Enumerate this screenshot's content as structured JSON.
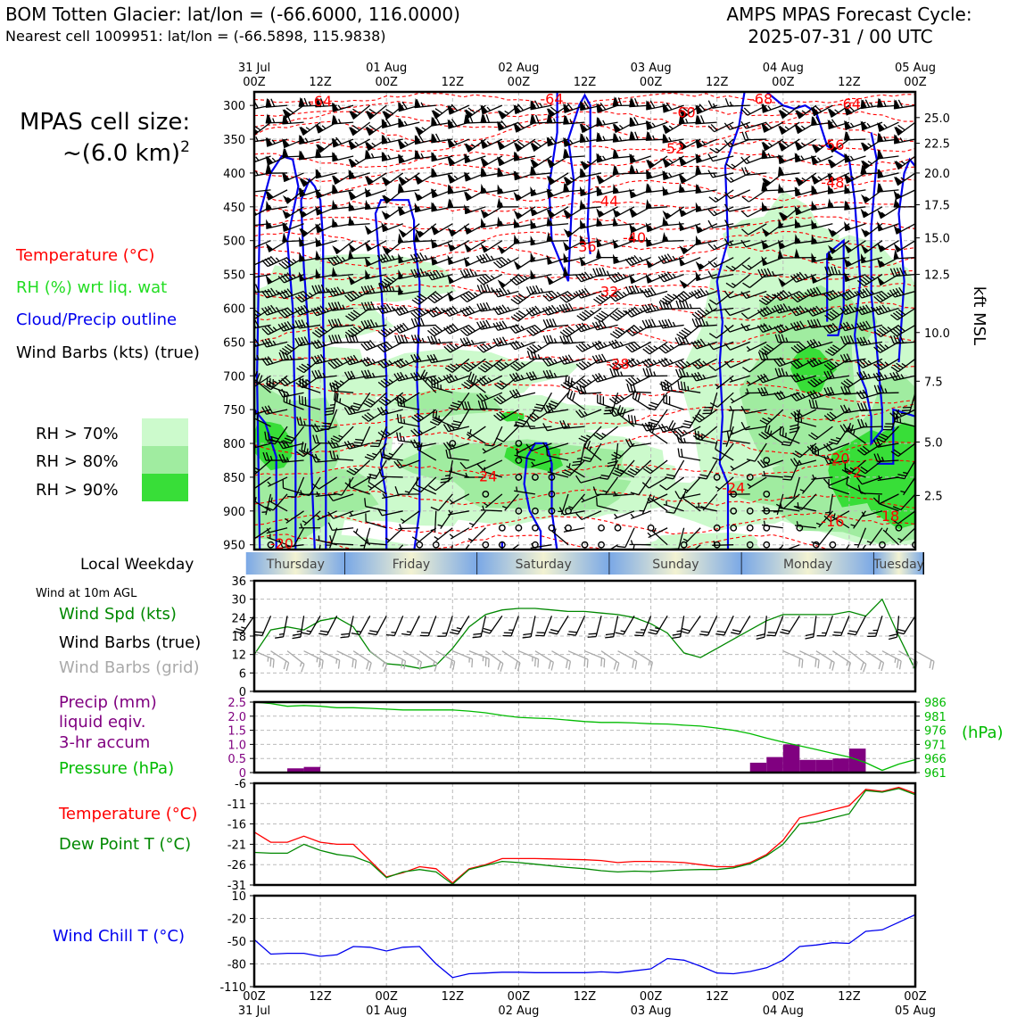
{
  "header": {
    "title_left": "BOM Totten Glacier: lat/lon = (-66.6000, 116.0000)",
    "subtitle_left": "Nearest cell 1009951: lat/lon = (-66.5898, 115.9838)",
    "title_right_1": "AMPS MPAS Forecast Cycle:",
    "title_right_2": "2025-07-31 / 00 UTC"
  },
  "cell_size": {
    "line1": "MPAS cell size:",
    "line2": "~(6.0 km)",
    "sup": "2"
  },
  "legend_upper": {
    "temperature": "Temperature (°C)",
    "rh": "RH (%) wrt liq. wat",
    "cloud": "Cloud/Precip outline",
    "wind": "Wind Barbs (kts) (true)",
    "rh70": "RH > 70%",
    "rh80": "RH > 80%",
    "rh90": "RH > 90%"
  },
  "colors": {
    "rh70": "#ccfacc",
    "rh80": "#a0eca0",
    "rh90": "#38de38",
    "temperature": "#ff0000",
    "cloud": "#0000ee",
    "wind_speed": "#008800",
    "grid_barb": "#aaaaaa",
    "precip": "#800080",
    "pressure": "#00bb00",
    "dewpoint": "#008800",
    "windchill": "#0000ee",
    "weekday_blue": "#7aa8e6",
    "weekday_cream": "#f2f2d2"
  },
  "time_axis": {
    "top_labels": [
      {
        "t": 0,
        "l1": "31 Jul",
        "l2": "00Z"
      },
      {
        "t": 12,
        "l1": "",
        "l2": "12Z"
      },
      {
        "t": 24,
        "l1": "01 Aug",
        "l2": "00Z"
      },
      {
        "t": 36,
        "l1": "",
        "l2": "12Z"
      },
      {
        "t": 48,
        "l1": "02 Aug",
        "l2": "00Z"
      },
      {
        "t": 60,
        "l1": "",
        "l2": "12Z"
      },
      {
        "t": 72,
        "l1": "03 Aug",
        "l2": "00Z"
      },
      {
        "t": 84,
        "l1": "",
        "l2": "12Z"
      },
      {
        "t": 96,
        "l1": "04 Aug",
        "l2": "00Z"
      },
      {
        "t": 108,
        "l1": "",
        "l2": "12Z"
      },
      {
        "t": 120,
        "l1": "05 Aug",
        "l2": "00Z"
      }
    ]
  },
  "weekday": {
    "label": "Local Weekday",
    "days": [
      {
        "name": "Thursday",
        "start": -1.5,
        "end": 16.5
      },
      {
        "name": "Friday",
        "start": 16.5,
        "end": 40.5
      },
      {
        "name": "Saturday",
        "start": 40.5,
        "end": 64.5
      },
      {
        "name": "Sunday",
        "start": 64.5,
        "end": 88.5
      },
      {
        "name": "Monday",
        "start": 88.5,
        "end": 112.5
      },
      {
        "name": "Tuesday",
        "start": 112.5,
        "end": 121.5
      }
    ]
  },
  "panel_labels": {
    "wind10m": "Wind at 10m AGL",
    "wind_spd": "Wind Spd (kts)",
    "wind_barbs_true": "Wind Barbs (true)",
    "wind_barbs_grid": "Wind Barbs (grid)",
    "precip1": "Precip (mm)",
    "precip2": "liquid eqiv.",
    "precip3": "3-hr accum",
    "pressure": "Pressure (hPa)",
    "hpa_unit": "(hPa)",
    "temp": "Temperature (°C)",
    "dewpt": "Dew Point T (°C)",
    "windchill": "Wind Chill T (°C)",
    "kft": "kft MSL"
  },
  "chart_data": [
    {
      "type": "heatmap",
      "name": "vertical cross-section",
      "y_axis": {
        "label": "",
        "ticks": [
          300,
          350,
          400,
          450,
          500,
          550,
          600,
          650,
          700,
          750,
          800,
          850,
          900,
          950
        ],
        "range": [
          957,
          280
        ],
        "units": "hPa"
      },
      "y2_axis": {
        "label": "kft MSL",
        "ticks": [
          {
            "label": "25.0",
            "p": 318
          },
          {
            "label": "22.5",
            "p": 356
          },
          {
            "label": "20.0",
            "p": 400
          },
          {
            "label": "17.5",
            "p": 447
          },
          {
            "label": "15.0",
            "p": 496
          },
          {
            "label": "12.5",
            "p": 550
          },
          {
            "label": "10.0",
            "p": 636
          },
          {
            "label": "7.5",
            "p": 708
          },
          {
            "label": "5.0",
            "p": 798
          },
          {
            "label": "2.5",
            "p": 877
          }
        ]
      },
      "x_range": [
        0,
        120
      ],
      "temperature_labels": [
        {
          "t": 12,
          "p": 293,
          "v": "-64"
        },
        {
          "t": 54,
          "p": 290,
          "v": "-64"
        },
        {
          "t": 92,
          "p": 290,
          "v": "-68"
        },
        {
          "t": 108,
          "p": 297,
          "v": "-64"
        },
        {
          "t": 78,
          "p": 310,
          "v": "-60"
        },
        {
          "t": 76,
          "p": 363,
          "v": "-52"
        },
        {
          "t": 105,
          "p": 358,
          "v": "-56"
        },
        {
          "t": 105,
          "p": 413,
          "v": "-48"
        },
        {
          "t": 64,
          "p": 441,
          "v": "-44"
        },
        {
          "t": 69,
          "p": 495,
          "v": "-40"
        },
        {
          "t": 60,
          "p": 508,
          "v": "-36"
        },
        {
          "t": 64,
          "p": 575,
          "v": "-32"
        },
        {
          "t": 66,
          "p": 682,
          "v": "-28"
        },
        {
          "t": 42,
          "p": 848,
          "v": "-24"
        },
        {
          "t": 87,
          "p": 865,
          "v": "-24"
        },
        {
          "t": 106,
          "p": 822,
          "v": "-20"
        },
        {
          "t": 5,
          "p": 948,
          "v": "-20"
        },
        {
          "t": 109,
          "p": 842,
          "v": "-2"
        },
        {
          "t": 105,
          "p": 915,
          "v": "-16"
        },
        {
          "t": 115,
          "p": 907,
          "v": "-18"
        }
      ]
    },
    {
      "type": "line",
      "name": "wind-10m",
      "ylim": [
        0,
        36
      ],
      "yticks": [
        0,
        6,
        12,
        18,
        24,
        30,
        36
      ],
      "series": [
        {
          "name": "Wind Spd (kts)",
          "x": [
            0,
            3,
            6,
            9,
            12,
            15,
            18,
            21,
            24,
            27,
            30,
            33,
            36,
            39,
            42,
            45,
            48,
            51,
            54,
            57,
            60,
            63,
            66,
            69,
            72,
            75,
            78,
            81,
            84,
            87,
            90,
            93,
            96,
            99,
            102,
            105,
            108,
            111,
            114,
            117,
            120
          ],
          "values": [
            12,
            20,
            21,
            20,
            23,
            24,
            21,
            13,
            9,
            8.5,
            7.5,
            8.5,
            14,
            21,
            25,
            26.5,
            27,
            27,
            26.5,
            26,
            26,
            25.5,
            25,
            24,
            22,
            19,
            12.5,
            11,
            14,
            17,
            20,
            23,
            25,
            25,
            25,
            25,
            26,
            24.5,
            30,
            18,
            7
          ]
        }
      ]
    },
    {
      "type": "bar",
      "name": "precip-pressure",
      "ylim": [
        0,
        2.5
      ],
      "yticks": [
        0,
        0.5,
        1.0,
        1.5,
        2.0,
        2.5
      ],
      "ytick_labels": [
        "0",
        "0.5",
        "1.0",
        "1.5",
        "2.0",
        "2.5"
      ],
      "y2lim": [
        961,
        986
      ],
      "y2ticks": [
        961,
        966,
        971,
        976,
        981,
        986
      ],
      "bars": [
        {
          "x0": 6,
          "x1": 9,
          "v": 0.15
        },
        {
          "x0": 9,
          "x1": 12,
          "v": 0.2
        },
        {
          "x0": 90,
          "x1": 93,
          "v": 0.35
        },
        {
          "x0": 93,
          "x1": 96,
          "v": 0.55
        },
        {
          "x0": 96,
          "x1": 99,
          "v": 1.0
        },
        {
          "x0": 99,
          "x1": 102,
          "v": 0.45
        },
        {
          "x0": 102,
          "x1": 105,
          "v": 0.45
        },
        {
          "x0": 105,
          "x1": 108,
          "v": 0.5
        },
        {
          "x0": 108,
          "x1": 111,
          "v": 0.85
        }
      ],
      "pressure": {
        "x": [
          0,
          3,
          6,
          9,
          12,
          15,
          18,
          21,
          24,
          27,
          30,
          33,
          36,
          39,
          42,
          45,
          48,
          51,
          54,
          57,
          60,
          63,
          66,
          69,
          72,
          75,
          78,
          81,
          84,
          87,
          90,
          93,
          96,
          99,
          102,
          105,
          108,
          111,
          114,
          117,
          120
        ],
        "values": [
          986,
          985.5,
          984.5,
          984.8,
          984.5,
          984,
          984,
          983.8,
          983.5,
          983.2,
          983.2,
          983.2,
          983.2,
          982.8,
          982.2,
          981.3,
          980.6,
          980.3,
          980.1,
          979.6,
          979.1,
          978.8,
          978.8,
          978.6,
          978.3,
          978.2,
          977.8,
          977.5,
          976.8,
          976,
          974.8,
          973.2,
          971.8,
          970.5,
          969.2,
          967.8,
          966.5,
          964.5,
          961.8,
          964,
          965.6
        ]
      }
    },
    {
      "type": "line",
      "name": "temperature-dewpoint",
      "ylim": [
        -31,
        -6
      ],
      "yticks": [
        -31,
        -26,
        -21,
        -16,
        -11,
        -6
      ],
      "series": [
        {
          "name": "Temperature (°C)",
          "x": [
            0,
            3,
            6,
            9,
            12,
            15,
            18,
            21,
            24,
            27,
            30,
            33,
            36,
            39,
            42,
            45,
            48,
            51,
            54,
            57,
            60,
            63,
            66,
            69,
            72,
            75,
            78,
            81,
            84,
            87,
            90,
            93,
            96,
            99,
            102,
            105,
            108,
            111,
            114,
            117,
            120
          ],
          "values": [
            -18,
            -20.5,
            -20.5,
            -19,
            -20.5,
            -21,
            -21,
            -25,
            -29,
            -28,
            -26.5,
            -27,
            -30.5,
            -27,
            -26,
            -24.5,
            -24.5,
            -24.5,
            -24.6,
            -24.7,
            -24.8,
            -25,
            -25.5,
            -25.2,
            -25.2,
            -25.3,
            -25.5,
            -26,
            -26.5,
            -26.5,
            -25.5,
            -23.5,
            -20,
            -14.5,
            -13.5,
            -12.5,
            -11.5,
            -7.5,
            -8,
            -7,
            -8.5
          ]
        },
        {
          "name": "Dew Point T (°C)",
          "x": [
            0,
            3,
            6,
            9,
            12,
            15,
            18,
            21,
            24,
            27,
            30,
            33,
            36,
            39,
            42,
            45,
            48,
            51,
            54,
            57,
            60,
            63,
            66,
            69,
            72,
            75,
            78,
            81,
            84,
            87,
            90,
            93,
            96,
            99,
            102,
            105,
            108,
            111,
            114,
            117,
            120
          ],
          "values": [
            -23,
            -23.2,
            -23.2,
            -21,
            -22.5,
            -23.5,
            -24,
            -25.5,
            -29.2,
            -27.8,
            -27.2,
            -27.8,
            -30.8,
            -27.2,
            -26.2,
            -25.2,
            -25.5,
            -25.9,
            -26.3,
            -26.7,
            -27,
            -27.5,
            -27.8,
            -27.6,
            -27.7,
            -27.5,
            -27.3,
            -27.2,
            -27.2,
            -26.8,
            -25.8,
            -23.8,
            -21,
            -16,
            -15.5,
            -14.5,
            -13.5,
            -7.8,
            -8.2,
            -7.3,
            -8.8
          ]
        }
      ]
    },
    {
      "type": "line",
      "name": "wind-chill",
      "ylim": [
        -110,
        10
      ],
      "yticks": [
        -110,
        -80,
        -50,
        -20,
        10
      ],
      "series": [
        {
          "name": "Wind Chill T (°C)",
          "x": [
            0,
            3,
            6,
            9,
            12,
            15,
            18,
            21,
            24,
            27,
            30,
            33,
            36,
            39,
            42,
            45,
            48,
            51,
            54,
            57,
            60,
            63,
            66,
            69,
            72,
            75,
            78,
            81,
            84,
            87,
            90,
            93,
            96,
            99,
            102,
            105,
            108,
            111,
            114,
            117,
            120
          ],
          "values": [
            -48,
            -67,
            -66,
            -66,
            -70,
            -68,
            -57,
            -58,
            -63,
            -58,
            -57,
            -80,
            -98,
            -93,
            -92,
            -91,
            -91,
            -91.5,
            -91.5,
            -91.5,
            -91.5,
            -90.5,
            -91.5,
            -89,
            -86.5,
            -73,
            -75,
            -83,
            -92,
            -93,
            -90,
            -85,
            -75,
            -57,
            -55,
            -52,
            -53,
            -37,
            -35,
            -25,
            -15
          ]
        }
      ]
    }
  ]
}
